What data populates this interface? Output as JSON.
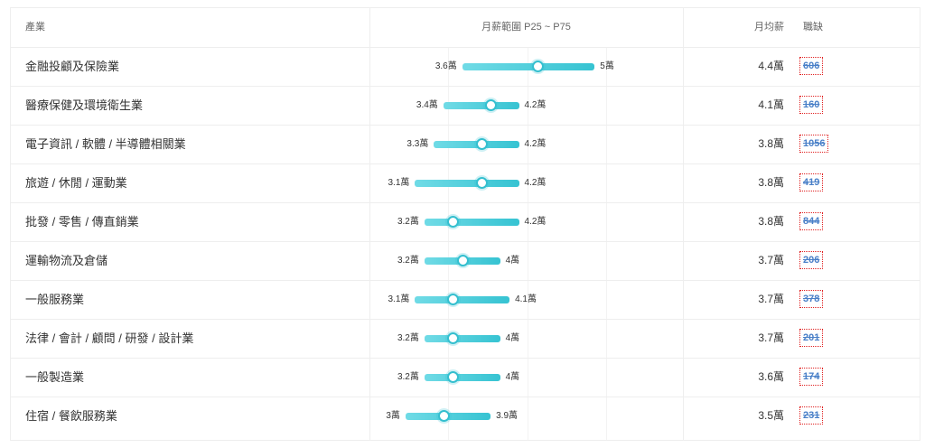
{
  "header": {
    "industry": "產業",
    "range": "月薪範圍 P25 ~ P75",
    "avg": "月均薪",
    "vacancies": "職缺"
  },
  "scale": {
    "min_wan": 2.8,
    "max_wan": 5.8
  },
  "rows": [
    {
      "industry": "金融投顧及保險業",
      "p25": 3.6,
      "median": 4.4,
      "p75": 5.0,
      "p25_label": "3.6萬",
      "p75_label": "5萬",
      "avg": "4.4萬",
      "vacancies": "606"
    },
    {
      "industry": "醫療保健及環境衛生業",
      "p25": 3.4,
      "median": 3.9,
      "p75": 4.2,
      "p25_label": "3.4萬",
      "p75_label": "4.2萬",
      "avg": "4.1萬",
      "vacancies": "160"
    },
    {
      "industry": "電子資訊 / 軟體 / 半導體相關業",
      "p25": 3.3,
      "median": 3.8,
      "p75": 4.2,
      "p25_label": "3.3萬",
      "p75_label": "4.2萬",
      "avg": "3.8萬",
      "vacancies": "1056"
    },
    {
      "industry": "旅遊 / 休閒 / 運動業",
      "p25": 3.1,
      "median": 3.8,
      "p75": 4.2,
      "p25_label": "3.1萬",
      "p75_label": "4.2萬",
      "avg": "3.8萬",
      "vacancies": "419"
    },
    {
      "industry": "批發 / 零售 / 傳直銷業",
      "p25": 3.2,
      "median": 3.5,
      "p75": 4.2,
      "p25_label": "3.2萬",
      "p75_label": "4.2萬",
      "avg": "3.8萬",
      "vacancies": "844"
    },
    {
      "industry": "運輸物流及倉儲",
      "p25": 3.2,
      "median": 3.6,
      "p75": 4.0,
      "p25_label": "3.2萬",
      "p75_label": "4萬",
      "avg": "3.7萬",
      "vacancies": "206"
    },
    {
      "industry": "一般服務業",
      "p25": 3.1,
      "median": 3.5,
      "p75": 4.1,
      "p25_label": "3.1萬",
      "p75_label": "4.1萬",
      "avg": "3.7萬",
      "vacancies": "378"
    },
    {
      "industry": "法律 / 會計 / 顧問 / 研發 / 設計業",
      "p25": 3.2,
      "median": 3.5,
      "p75": 4.0,
      "p25_label": "3.2萬",
      "p75_label": "4萬",
      "avg": "3.7萬",
      "vacancies": "201"
    },
    {
      "industry": "一般製造業",
      "p25": 3.2,
      "median": 3.5,
      "p75": 4.0,
      "p25_label": "3.2萬",
      "p75_label": "4萬",
      "avg": "3.6萬",
      "vacancies": "174"
    },
    {
      "industry": "住宿 / 餐飲服務業",
      "p25": 3.0,
      "median": 3.4,
      "p75": 3.9,
      "p25_label": "3萬",
      "p75_label": "3.9萬",
      "avg": "3.5萬",
      "vacancies": "231"
    }
  ]
}
